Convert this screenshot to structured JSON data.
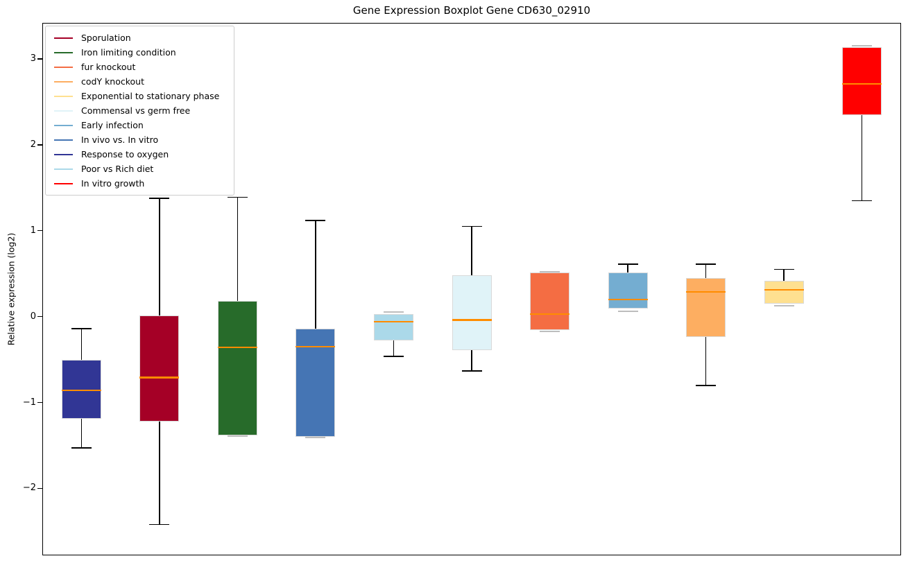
{
  "chart_data": {
    "type": "boxplot",
    "title": "Gene Expression Boxplot Gene CD630_02910",
    "ylabel": "Relative expression (log2)",
    "xlabel": "",
    "ylim": [
      -2.78,
      3.42
    ],
    "yticks": [
      {
        "value": 3,
        "label": "3"
      },
      {
        "value": 2,
        "label": "2"
      },
      {
        "value": 1,
        "label": "1"
      },
      {
        "value": 0,
        "label": "0"
      },
      {
        "value": -1,
        "label": "−1"
      },
      {
        "value": -2,
        "label": "−2"
      }
    ],
    "grid": false,
    "legend_position": "upper-left",
    "median_color": "#ff8c00",
    "box_edge_color": "#d9d9d9",
    "whisker_color": "#000000",
    "hidden_cap_color": "#bdbdbd",
    "series": [
      {
        "name": "Response to oxygen",
        "color": "#313695",
        "whisker_low": -1.53,
        "q1": -1.19,
        "median": -0.86,
        "q3": -0.5,
        "whisker_high": -0.14
      },
      {
        "name": "Sporulation",
        "color": "#a50026",
        "whisker_low": -2.42,
        "q1": -1.22,
        "median": -0.71,
        "q3": 0.01,
        "whisker_high": 1.38
      },
      {
        "name": "Iron limiting condition",
        "color": "#276b2a",
        "whisker_low": -1.38,
        "q1": -1.38,
        "median": -0.36,
        "q3": 0.18,
        "whisker_high": 1.39
      },
      {
        "name": "In vivo vs. In vitro",
        "color": "#4575b4",
        "whisker_low": -1.4,
        "q1": -1.4,
        "median": -0.35,
        "q3": -0.14,
        "whisker_high": 1.12
      },
      {
        "name": "Poor vs Rich diet",
        "color": "#abd9e9",
        "whisker_low": -0.46,
        "q1": -0.28,
        "median": -0.06,
        "q3": 0.03,
        "whisker_high": 0.04
      },
      {
        "name": "Commensal vs germ free",
        "color": "#e0f3f8",
        "whisker_low": -0.63,
        "q1": -0.39,
        "median": -0.04,
        "q3": 0.48,
        "whisker_high": 1.05
      },
      {
        "name": "fur knockout",
        "color": "#f46d43",
        "whisker_low": -0.16,
        "q1": -0.16,
        "median": 0.03,
        "q3": 0.51,
        "whisker_high": 0.51
      },
      {
        "name": "Early infection",
        "color": "#74add1",
        "whisker_low": 0.07,
        "q1": 0.09,
        "median": 0.2,
        "q3": 0.51,
        "whisker_high": 0.61
      },
      {
        "name": "codY knockout",
        "color": "#fdae61",
        "whisker_low": -0.8,
        "q1": -0.24,
        "median": 0.29,
        "q3": 0.45,
        "whisker_high": 0.61
      },
      {
        "name": "Exponential to stationary phase",
        "color": "#fee090",
        "whisker_low": 0.14,
        "q1": 0.15,
        "median": 0.31,
        "q3": 0.42,
        "whisker_high": 0.55
      },
      {
        "name": "In vitro growth",
        "color": "#ff0000",
        "whisker_low": 1.35,
        "q1": 2.35,
        "median": 2.71,
        "q3": 3.14,
        "whisker_high": 3.14
      }
    ],
    "legend_order": [
      "Sporulation",
      "Iron limiting condition",
      "fur knockout",
      "codY knockout",
      "Exponential to stationary phase",
      "Commensal vs germ free",
      "Early infection",
      "In vivo vs. In vitro",
      "Response to oxygen",
      "Poor vs Rich diet",
      "In vitro growth"
    ]
  }
}
